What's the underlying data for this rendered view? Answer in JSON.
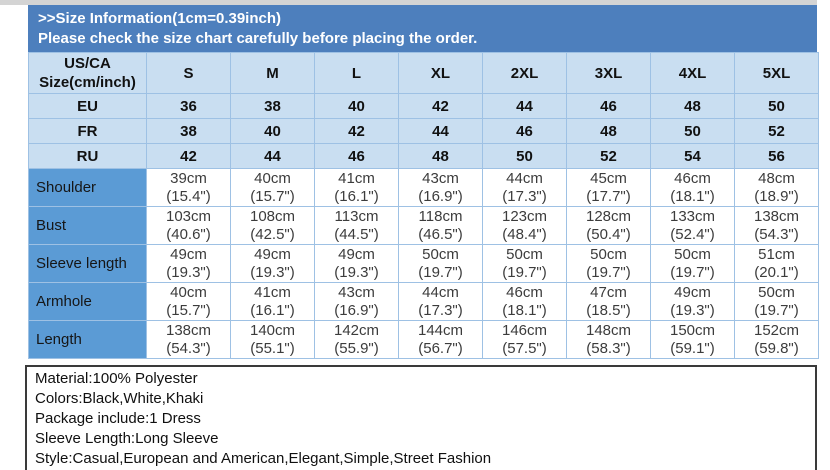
{
  "banner": {
    "title": ">>Size Information(1cm=0.39inch)",
    "subtitle": "Please check the size chart carefully before placing the order."
  },
  "table": {
    "corner": {
      "line1": "US/CA",
      "line2": "Size(cm/inch)"
    },
    "sizes": [
      "S",
      "M",
      "L",
      "XL",
      "2XL",
      "3XL",
      "4XL",
      "5XL"
    ],
    "region_rows": [
      {
        "label": "EU",
        "values": [
          "36",
          "38",
          "40",
          "42",
          "44",
          "46",
          "48",
          "50"
        ]
      },
      {
        "label": "FR",
        "values": [
          "38",
          "40",
          "42",
          "44",
          "46",
          "48",
          "50",
          "52"
        ]
      },
      {
        "label": "RU",
        "values": [
          "42",
          "44",
          "46",
          "48",
          "50",
          "52",
          "54",
          "56"
        ]
      }
    ],
    "measure_rows": [
      {
        "label": "Shoulder",
        "values": [
          {
            "cm": "39cm",
            "inch": "(15.4\")"
          },
          {
            "cm": "40cm",
            "inch": "(15.7\")"
          },
          {
            "cm": "41cm",
            "inch": "(16.1\")"
          },
          {
            "cm": "43cm",
            "inch": "(16.9\")"
          },
          {
            "cm": "44cm",
            "inch": "(17.3\")"
          },
          {
            "cm": "45cm",
            "inch": "(17.7\")"
          },
          {
            "cm": "46cm",
            "inch": "(18.1\")"
          },
          {
            "cm": "48cm",
            "inch": "(18.9\")"
          }
        ]
      },
      {
        "label": "Bust",
        "values": [
          {
            "cm": "103cm",
            "inch": "(40.6\")"
          },
          {
            "cm": "108cm",
            "inch": "(42.5\")"
          },
          {
            "cm": "113cm",
            "inch": "(44.5\")"
          },
          {
            "cm": "118cm",
            "inch": "(46.5\")"
          },
          {
            "cm": "123cm",
            "inch": "(48.4\")"
          },
          {
            "cm": "128cm",
            "inch": "(50.4\")"
          },
          {
            "cm": "133cm",
            "inch": "(52.4\")"
          },
          {
            "cm": "138cm",
            "inch": "(54.3\")"
          }
        ]
      },
      {
        "label": "Sleeve length",
        "values": [
          {
            "cm": "49cm",
            "inch": "(19.3\")"
          },
          {
            "cm": "49cm",
            "inch": "(19.3\")"
          },
          {
            "cm": "49cm",
            "inch": "(19.3\")"
          },
          {
            "cm": "50cm",
            "inch": "(19.7\")"
          },
          {
            "cm": "50cm",
            "inch": "(19.7\")"
          },
          {
            "cm": "50cm",
            "inch": "(19.7\")"
          },
          {
            "cm": "50cm",
            "inch": "(19.7\")"
          },
          {
            "cm": "51cm",
            "inch": "(20.1\")"
          }
        ]
      },
      {
        "label": "Armhole",
        "values": [
          {
            "cm": "40cm",
            "inch": "(15.7\")"
          },
          {
            "cm": "41cm",
            "inch": "(16.1\")"
          },
          {
            "cm": "43cm",
            "inch": "(16.9\")"
          },
          {
            "cm": "44cm",
            "inch": "(17.3\")"
          },
          {
            "cm": "46cm",
            "inch": "(18.1\")"
          },
          {
            "cm": "47cm",
            "inch": "(18.5\")"
          },
          {
            "cm": "49cm",
            "inch": "(19.3\")"
          },
          {
            "cm": "50cm",
            "inch": "(19.7\")"
          }
        ]
      },
      {
        "label": "Length",
        "values": [
          {
            "cm": "138cm",
            "inch": "(54.3\")"
          },
          {
            "cm": "140cm",
            "inch": "(55.1\")"
          },
          {
            "cm": "142cm",
            "inch": "(55.9\")"
          },
          {
            "cm": "144cm",
            "inch": "(56.7\")"
          },
          {
            "cm": "146cm",
            "inch": "(57.5\")"
          },
          {
            "cm": "148cm",
            "inch": "(58.3\")"
          },
          {
            "cm": "150cm",
            "inch": "(59.1\")"
          },
          {
            "cm": "152cm",
            "inch": "(59.8\")"
          }
        ]
      }
    ]
  },
  "info_box": {
    "lines": [
      "Material:100% Polyester",
      "Colors:Black,White,Khaki",
      "Package include:1 Dress",
      "Sleeve Length:Long Sleeve",
      "Style:Casual,European and American,Elegant,Simple,Street Fashion"
    ]
  },
  "colors": {
    "banner_bg": "#4d7fbd",
    "light_cell_bg": "#c9def1",
    "label_cell_bg": "#5b9bd5",
    "grid_border": "#9ec1e4",
    "info_border": "#3a3a3a"
  }
}
